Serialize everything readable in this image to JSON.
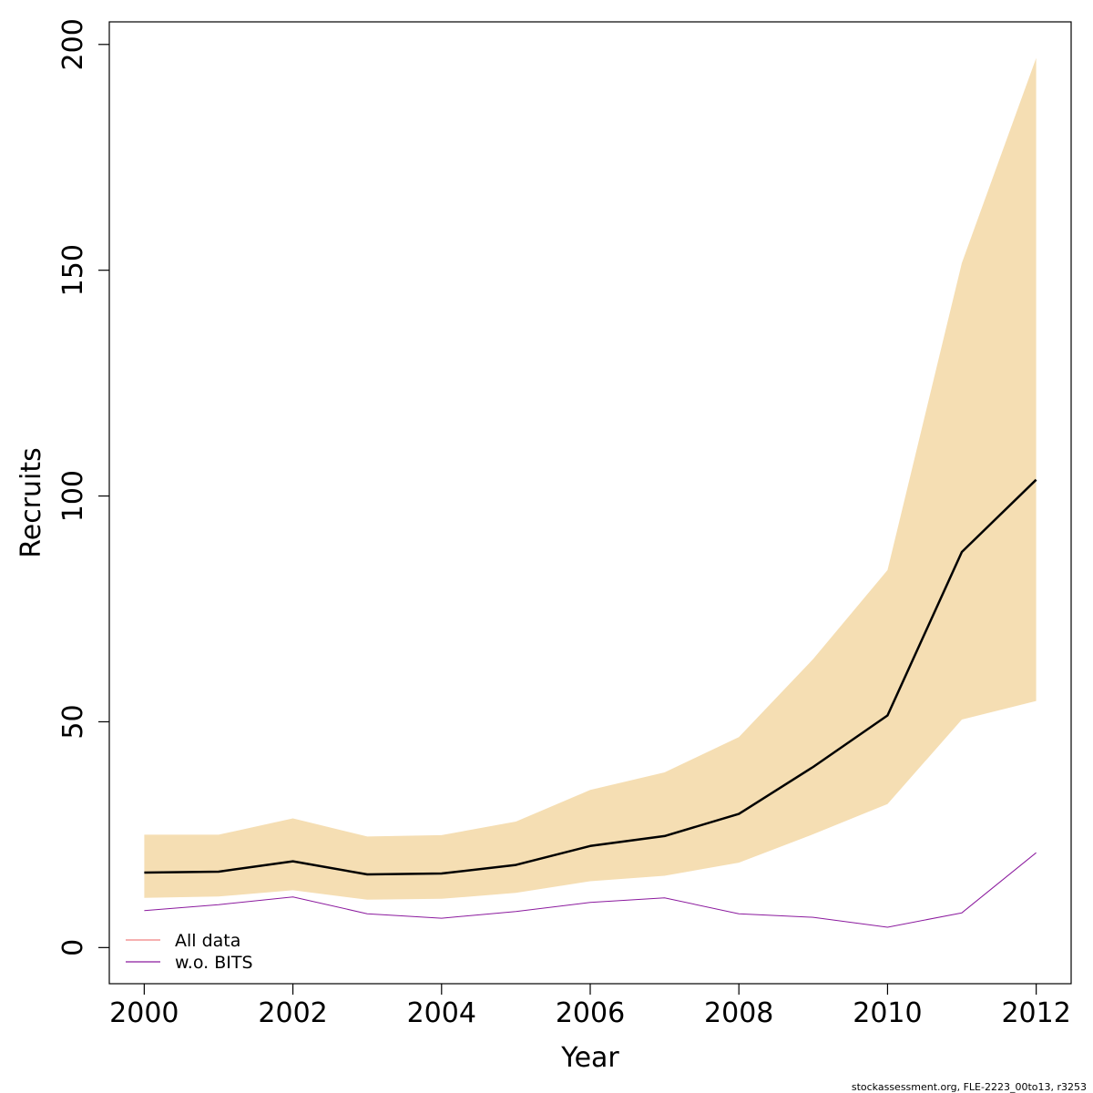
{
  "chart_data": {
    "type": "line",
    "xlabel": "Year",
    "ylabel": "Recruits",
    "xlim": [
      1999.53,
      2012.47
    ],
    "ylim": [
      -8,
      205
    ],
    "x_ticks": [
      2000,
      2002,
      2004,
      2006,
      2008,
      2010,
      2012
    ],
    "y_ticks": [
      0,
      50,
      100,
      150,
      200
    ],
    "x": [
      2000,
      2001,
      2002,
      2003,
      2004,
      2005,
      2006,
      2007,
      2008,
      2009,
      2010,
      2011,
      2012
    ],
    "band": {
      "lower": [
        11,
        11.3,
        12.7,
        10.6,
        10.8,
        12.1,
        14.7,
        15.9,
        18.8,
        25.1,
        31.8,
        50.5,
        54.6
      ],
      "upper": [
        25,
        25,
        28.6,
        24.6,
        24.9,
        27.9,
        34.9,
        38.8,
        46.6,
        63.9,
        83.6,
        151.6,
        197
      ],
      "color": "#F5DEB3"
    },
    "series": [
      {
        "values": [
          16.6,
          16.8,
          19.1,
          16.2,
          16.4,
          18.3,
          22.5,
          24.7,
          29.6,
          40,
          51.4,
          87.6,
          103.6
        ],
        "color": "#000000",
        "width": 2.5
      },
      {
        "name": "w.o. BITS",
        "values": [
          8.2,
          9.5,
          11.2,
          7.5,
          6.5,
          8,
          10,
          11,
          7.5,
          6.7,
          4.5,
          7.7,
          21
        ],
        "color": "#8B1A9E",
        "width": 1
      }
    ],
    "legend": {
      "position": "bottom-left",
      "entries": [
        {
          "label": "All data",
          "color": "#F08080"
        },
        {
          "label": "w.o. BITS",
          "color": "#8B1A9E"
        }
      ]
    },
    "grid": false
  },
  "footnote": "stockassessment.org, FLE-2223_00to13, r3253"
}
